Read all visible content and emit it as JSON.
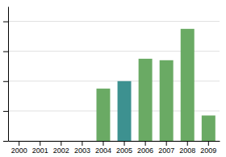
{
  "chart_data": {
    "type": "bar",
    "categories": [
      "2000",
      "2001",
      "2002",
      "2003",
      "2004",
      "2005",
      "2006",
      "2007",
      "2008",
      "2009"
    ],
    "values": [
      0,
      0,
      0,
      0,
      35,
      40,
      55,
      54,
      75,
      17
    ],
    "colors": [
      "#6aaa64",
      "#6aaa64",
      "#6aaa64",
      "#6aaa64",
      "#6aaa64",
      "#3d9190",
      "#6aaa64",
      "#6aaa64",
      "#6aaa64",
      "#6aaa64"
    ],
    "ylim": [
      0,
      90
    ],
    "yticks": [
      0,
      20,
      40,
      60,
      80
    ],
    "grid": true,
    "tick_labels": "x"
  }
}
